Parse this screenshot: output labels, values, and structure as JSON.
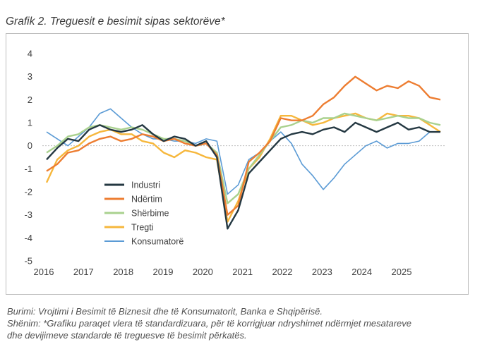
{
  "title": "Grafik 2. Treguesit e besimit sipas sektorëve*",
  "notes": {
    "source": "Burimi: Vrojtimi i Besimit të Biznesit dhe të Konsumatorit, Banka e Shqipërisë.",
    "note_line1": "Shënim: *Grafiku paraqet vlera të standardizuara, për të korrigjuar ndryshimet ndërmjet mesatareve",
    "note_line2": "dhe devijimeve standarde të treguesve të besimit përkatës."
  },
  "chart_data": {
    "type": "line",
    "title": "Grafik 2. Treguesit e besimit sipas sektorëve*",
    "xlabel": "",
    "ylabel": "",
    "ylim": [
      -5,
      4
    ],
    "yticks": [
      4,
      3,
      2,
      1,
      0,
      -1,
      -2,
      -3,
      -4,
      -5
    ],
    "xticks": [
      "2016",
      "2017",
      "2018",
      "2019",
      "2020",
      "2021",
      "2022",
      "2023",
      "2024",
      "2025"
    ],
    "x": [
      "2016Q1",
      "2016Q2",
      "2016Q3",
      "2016Q4",
      "2017Q1",
      "2017Q2",
      "2017Q3",
      "2017Q4",
      "2018Q1",
      "2018Q2",
      "2018Q3",
      "2018Q4",
      "2019Q1",
      "2019Q2",
      "2019Q3",
      "2019Q4",
      "2020Q1",
      "2020Q2",
      "2020Q3",
      "2020Q4",
      "2021Q1",
      "2021Q2",
      "2021Q3",
      "2021Q4",
      "2022Q1",
      "2022Q2",
      "2022Q3",
      "2022Q4",
      "2023Q1",
      "2023Q2",
      "2023Q3",
      "2023Q4",
      "2024Q1",
      "2024Q2",
      "2024Q3",
      "2024Q4",
      "2025Q1",
      "2025Q2"
    ],
    "grid": false,
    "legend": "center-left",
    "series": [
      {
        "name": "Industri",
        "color": "#243842",
        "values": [
          -0.6,
          -0.1,
          0.3,
          0.2,
          0.7,
          0.9,
          0.7,
          0.6,
          0.7,
          0.9,
          0.5,
          0.2,
          0.4,
          0.3,
          0.0,
          0.2,
          -0.5,
          -3.6,
          -2.8,
          -1.2,
          -0.7,
          -0.2,
          0.3,
          0.5,
          0.6,
          0.5,
          0.7,
          0.8,
          0.6,
          1.0,
          0.8,
          0.6,
          0.8,
          1.0,
          0.7,
          0.8,
          0.6,
          0.6
        ]
      },
      {
        "name": "Ndërtim",
        "color": "#ED7D31",
        "values": [
          -1.1,
          -0.8,
          -0.3,
          -0.2,
          0.1,
          0.3,
          0.4,
          0.2,
          0.3,
          0.5,
          0.4,
          0.2,
          0.3,
          0.1,
          0.0,
          0.1,
          -0.4,
          -3.0,
          -2.6,
          -0.7,
          -0.3,
          0.2,
          1.2,
          1.1,
          1.1,
          1.3,
          1.8,
          2.1,
          2.6,
          3.0,
          2.7,
          2.4,
          2.6,
          2.5,
          2.8,
          2.6,
          2.1,
          2.0
        ]
      },
      {
        "name": "Shërbime",
        "color": "#A9D18E",
        "values": [
          -0.3,
          0.0,
          0.4,
          0.5,
          0.8,
          0.9,
          0.8,
          0.7,
          0.8,
          0.7,
          0.5,
          0.3,
          0.3,
          0.2,
          0.0,
          0.1,
          -0.3,
          -2.5,
          -2.1,
          -1.0,
          -0.4,
          0.2,
          0.8,
          0.9,
          1.1,
          1.0,
          1.2,
          1.2,
          1.4,
          1.3,
          1.2,
          1.1,
          1.2,
          1.3,
          1.2,
          1.2,
          1.0,
          0.9
        ]
      },
      {
        "name": "Tregti",
        "color": "#F6B73C",
        "values": [
          -1.6,
          -0.6,
          -0.2,
          0.0,
          0.4,
          0.6,
          0.7,
          0.5,
          0.5,
          0.2,
          0.1,
          -0.3,
          -0.5,
          -0.2,
          -0.3,
          -0.5,
          -0.6,
          -3.3,
          -2.4,
          -1.0,
          -0.5,
          0.3,
          1.3,
          1.3,
          1.1,
          0.9,
          1.0,
          1.2,
          1.3,
          1.4,
          1.2,
          1.1,
          1.4,
          1.3,
          1.3,
          1.2,
          0.9,
          0.6
        ]
      },
      {
        "name": "Konsumatorë",
        "color": "#5B9BD5",
        "values": [
          0.6,
          0.3,
          0.0,
          0.4,
          0.8,
          1.4,
          1.6,
          1.2,
          0.8,
          0.5,
          0.3,
          0.3,
          0.2,
          0.2,
          0.1,
          0.3,
          0.2,
          -2.1,
          -1.7,
          -0.6,
          -0.3,
          0.2,
          0.6,
          0.1,
          -0.8,
          -1.3,
          -1.9,
          -1.4,
          -0.8,
          -0.4,
          0.0,
          0.2,
          -0.1,
          0.1,
          0.1,
          0.2,
          0.6,
          0.6
        ]
      }
    ]
  }
}
